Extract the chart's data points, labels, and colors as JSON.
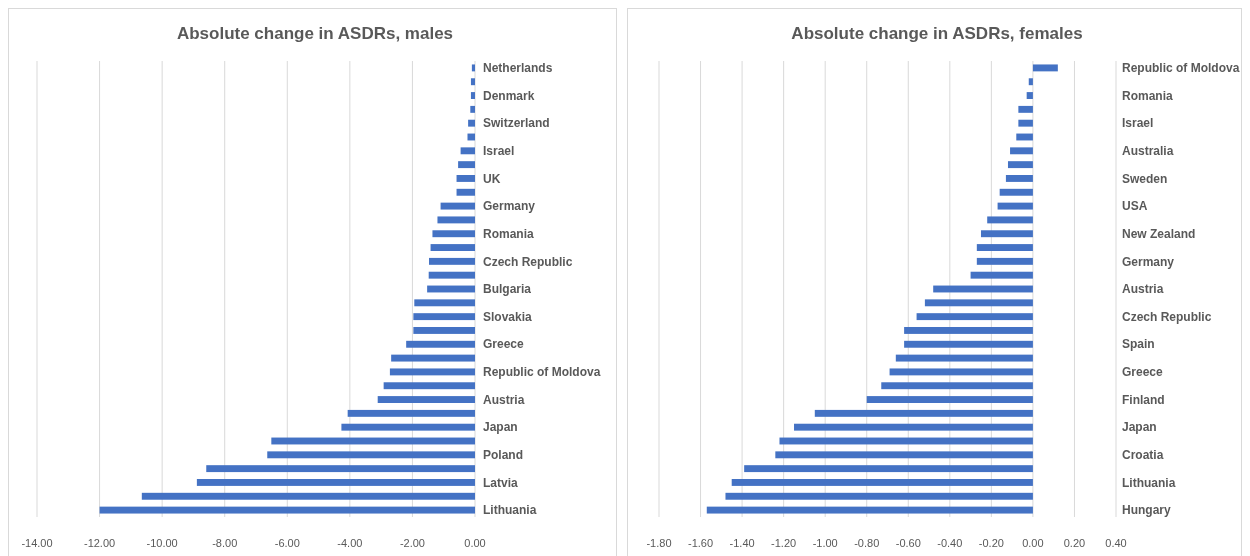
{
  "chart_data": [
    {
      "type": "bar",
      "orientation": "horizontal",
      "title": "Absolute change in ASDRs, males",
      "categories": [
        "Netherlands",
        null,
        "Denmark",
        null,
        "Switzerland",
        null,
        "Israel",
        null,
        "UK",
        null,
        "Germany",
        null,
        "Romania",
        null,
        "Czech Republic",
        null,
        "Bulgaria",
        null,
        "Slovakia",
        null,
        "Greece",
        null,
        "Republic of Moldova",
        null,
        "Austria",
        null,
        "Japan",
        null,
        "Poland",
        null,
        "Latvia",
        null,
        "Lithuania"
      ],
      "values": [
        -0.1,
        -0.13,
        -0.13,
        -0.15,
        -0.22,
        -0.24,
        -0.46,
        -0.54,
        -0.59,
        -0.59,
        -1.1,
        -1.2,
        -1.36,
        -1.42,
        -1.47,
        -1.48,
        -1.53,
        -1.94,
        -1.97,
        -1.97,
        -2.2,
        -2.68,
        -2.72,
        -2.92,
        -3.11,
        -4.07,
        -4.27,
        -6.51,
        -6.64,
        -8.59,
        -8.89,
        -10.65,
        -12.0
      ],
      "color": "#4472c4",
      "xlim": [
        -14,
        0
      ],
      "xticks": [
        {
          "value": -14,
          "label": "-14.00"
        },
        {
          "value": -12,
          "label": "-12.00"
        },
        {
          "value": -10,
          "label": "-10.00"
        },
        {
          "value": -8,
          "label": "-8.00"
        },
        {
          "value": -6,
          "label": "-6.00"
        },
        {
          "value": -4,
          "label": "-4.00"
        },
        {
          "value": -2,
          "label": "-2.00"
        },
        {
          "value": 0,
          "label": "0.00"
        }
      ],
      "grid": "x"
    },
    {
      "type": "bar",
      "orientation": "horizontal",
      "title": "Absolute change in ASDRs, females",
      "categories": [
        "Republic of Moldova",
        null,
        "Romania",
        null,
        "Israel",
        null,
        "Australia",
        null,
        "Sweden",
        null,
        "USA",
        null,
        "New Zealand",
        null,
        "Germany",
        null,
        "Austria",
        null,
        "Czech Republic",
        null,
        "Spain",
        null,
        "Greece",
        null,
        "Finland",
        null,
        "Japan",
        null,
        "Croatia",
        null,
        "Lithuania",
        null,
        "Hungary"
      ],
      "values": [
        0.12,
        -0.02,
        -0.03,
        -0.07,
        -0.07,
        -0.08,
        -0.11,
        -0.12,
        -0.13,
        -0.16,
        -0.17,
        -0.22,
        -0.25,
        -0.27,
        -0.27,
        -0.3,
        -0.48,
        -0.52,
        -0.56,
        -0.62,
        -0.62,
        -0.66,
        -0.69,
        -0.73,
        -0.8,
        -1.05,
        -1.15,
        -1.22,
        -1.24,
        -1.39,
        -1.45,
        -1.48,
        -1.57
      ],
      "color": "#4472c4",
      "xlim": [
        -1.8,
        0.4
      ],
      "xticks": [
        {
          "value": -1.8,
          "label": "-1.80"
        },
        {
          "value": -1.6,
          "label": "-1.60"
        },
        {
          "value": -1.4,
          "label": "-1.40"
        },
        {
          "value": -1.2,
          "label": "-1.20"
        },
        {
          "value": -1,
          "label": "-1.00"
        },
        {
          "value": -0.8,
          "label": "-0.80"
        },
        {
          "value": -0.6,
          "label": "-0.60"
        },
        {
          "value": -0.4,
          "label": "-0.40"
        },
        {
          "value": -0.2,
          "label": "-0.20"
        },
        {
          "value": 0,
          "label": "0.00"
        },
        {
          "value": 0.2,
          "label": "0.20"
        },
        {
          "value": 0.4,
          "label": "0.40"
        }
      ],
      "grid": "x"
    }
  ]
}
